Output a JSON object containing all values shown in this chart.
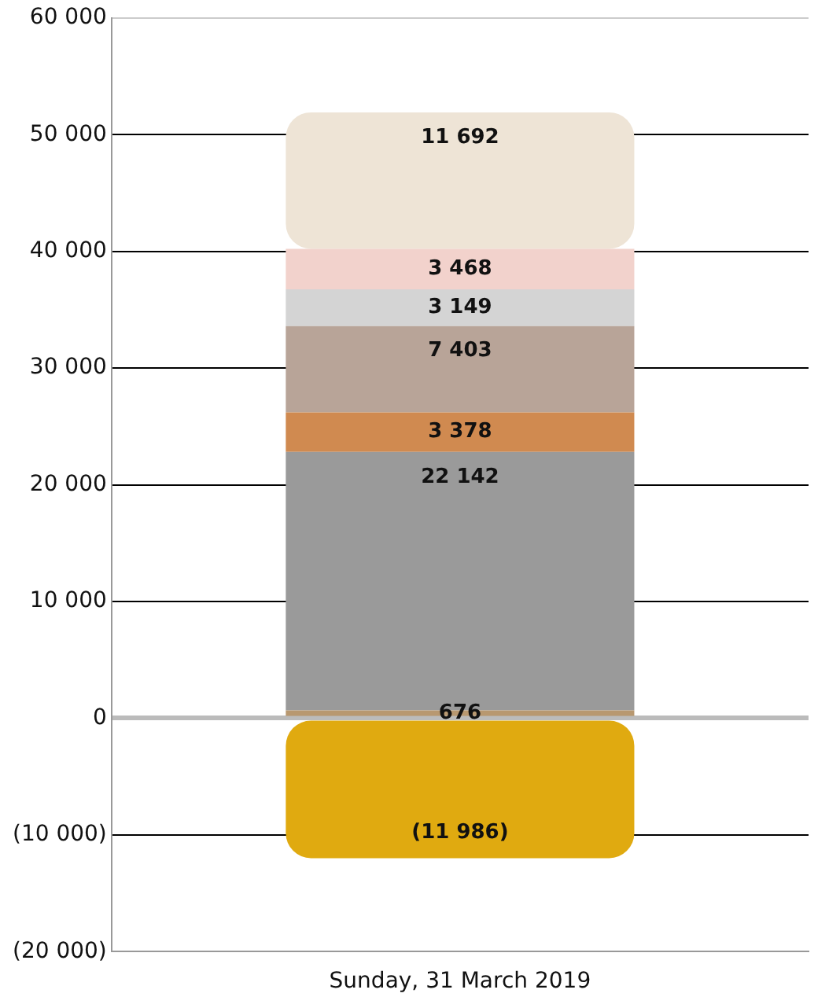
{
  "chart_data": {
    "type": "bar",
    "stacked": true,
    "categories": [
      "Sunday, 31 March 2019"
    ],
    "series": [
      {
        "color": "#e0aa10",
        "values": [
          -11986
        ],
        "value_labels": [
          "(11 986)"
        ]
      },
      {
        "color": "#b89870",
        "values": [
          676
        ],
        "value_labels": [
          "676"
        ]
      },
      {
        "color": "#9a9a9a",
        "values": [
          22142
        ],
        "value_labels": [
          "22 142"
        ]
      },
      {
        "color": "#d08a50",
        "values": [
          3378
        ],
        "value_labels": [
          "3 378"
        ]
      },
      {
        "color": "#b8a498",
        "values": [
          7403
        ],
        "value_labels": [
          "7 403"
        ]
      },
      {
        "color": "#d4d4d4",
        "values": [
          3149
        ],
        "value_labels": [
          "3 149"
        ]
      },
      {
        "color": "#f2d2cc",
        "values": [
          3468
        ],
        "value_labels": [
          "3 468"
        ]
      },
      {
        "color": "#eee4d6",
        "values": [
          11692
        ],
        "value_labels": [
          "11 692"
        ]
      }
    ],
    "ylim": [
      -20000,
      60000
    ],
    "yticks": [
      {
        "value": -20000,
        "label": "(20 000)"
      },
      {
        "value": -10000,
        "label": "(10 000)"
      },
      0,
      {
        "value": 10000,
        "label": "10 000"
      },
      {
        "value": 20000,
        "label": "20 000"
      },
      {
        "value": 30000,
        "label": "30 000"
      },
      {
        "value": 40000,
        "label": "40 000"
      },
      {
        "value": 50000,
        "label": "50 000"
      },
      {
        "value": 60000,
        "label": "60 000"
      }
    ],
    "grid": "y",
    "legend": false
  }
}
